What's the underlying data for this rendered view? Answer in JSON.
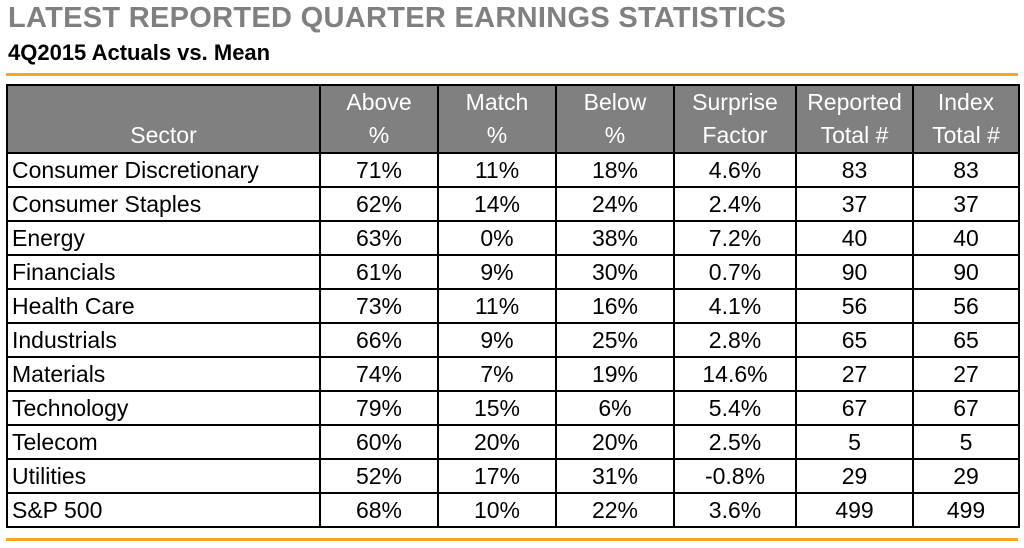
{
  "title": "LATEST REPORTED QUARTER EARNINGS STATISTICS",
  "subtitle": "4Q2015 Actuals vs. Mean",
  "colors": {
    "title": "#808080",
    "header_bg": "#808080",
    "header_text": "#ffffff",
    "rule": "#f5a623",
    "border": "#000000"
  },
  "chart_data": {
    "type": "table",
    "columns": [
      {
        "key": "sector",
        "line1": "",
        "line2": "Sector"
      },
      {
        "key": "above",
        "line1": "Above",
        "line2": "%"
      },
      {
        "key": "match",
        "line1": "Match",
        "line2": "%"
      },
      {
        "key": "below",
        "line1": "Below",
        "line2": "%"
      },
      {
        "key": "surprise",
        "line1": "Surprise",
        "line2": "Factor"
      },
      {
        "key": "reported",
        "line1": "Reported",
        "line2": "Total #"
      },
      {
        "key": "index",
        "line1": "Index",
        "line2": "Total #"
      }
    ],
    "rows": [
      {
        "sector": "Consumer Discretionary",
        "above": "71%",
        "match": "11%",
        "below": "18%",
        "surprise": "4.6%",
        "reported": "83",
        "index": "83"
      },
      {
        "sector": "Consumer Staples",
        "above": "62%",
        "match": "14%",
        "below": "24%",
        "surprise": "2.4%",
        "reported": "37",
        "index": "37"
      },
      {
        "sector": "Energy",
        "above": "63%",
        "match": "0%",
        "below": "38%",
        "surprise": "7.2%",
        "reported": "40",
        "index": "40"
      },
      {
        "sector": "Financials",
        "above": "61%",
        "match": "9%",
        "below": "30%",
        "surprise": "0.7%",
        "reported": "90",
        "index": "90"
      },
      {
        "sector": "Health Care",
        "above": "73%",
        "match": "11%",
        "below": "16%",
        "surprise": "4.1%",
        "reported": "56",
        "index": "56"
      },
      {
        "sector": "Industrials",
        "above": "66%",
        "match": "9%",
        "below": "25%",
        "surprise": "2.8%",
        "reported": "65",
        "index": "65"
      },
      {
        "sector": "Materials",
        "above": "74%",
        "match": "7%",
        "below": "19%",
        "surprise": "14.6%",
        "reported": "27",
        "index": "27"
      },
      {
        "sector": "Technology",
        "above": "79%",
        "match": "15%",
        "below": "6%",
        "surprise": "5.4%",
        "reported": "67",
        "index": "67"
      },
      {
        "sector": "Telecom",
        "above": "60%",
        "match": "20%",
        "below": "20%",
        "surprise": "2.5%",
        "reported": "5",
        "index": "5"
      },
      {
        "sector": "Utilities",
        "above": "52%",
        "match": "17%",
        "below": "31%",
        "surprise": "-0.8%",
        "reported": "29",
        "index": "29"
      },
      {
        "sector": "S&P 500",
        "above": "68%",
        "match": "10%",
        "below": "22%",
        "surprise": "3.6%",
        "reported": "499",
        "index": "499"
      }
    ]
  }
}
